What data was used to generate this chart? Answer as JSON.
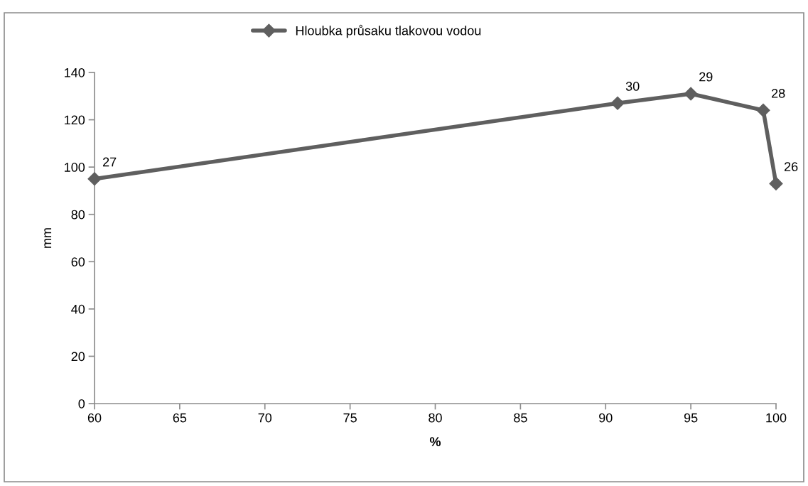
{
  "chart_data": {
    "type": "line",
    "xlabel": "%",
    "ylabel": "mm",
    "x": [
      60,
      90.7,
      95,
      99.25,
      100
    ],
    "series": [
      {
        "name": "Hloubka průsaku tlakovou vodou",
        "color": "#5f5f5f",
        "values": [
          95,
          127,
          131,
          124,
          93
        ]
      }
    ],
    "annotations": [
      {
        "text": "27",
        "x": 60,
        "y": 95
      },
      {
        "text": "30",
        "x": 90.7,
        "y": 127
      },
      {
        "text": "29",
        "x": 95,
        "y": 131
      },
      {
        "text": "28",
        "x": 99.25,
        "y": 124
      },
      {
        "text": "26",
        "x": 100,
        "y": 93
      }
    ],
    "xlim": [
      60,
      100
    ],
    "xticks": [
      60,
      65,
      70,
      75,
      80,
      85,
      90,
      95,
      100
    ],
    "ylim": [
      0,
      140
    ],
    "yticks": [
      0,
      20,
      40,
      60,
      80,
      100,
      120,
      140
    ],
    "grid": false,
    "legend": "top",
    "marker": "diamond",
    "line_style": "solid"
  }
}
